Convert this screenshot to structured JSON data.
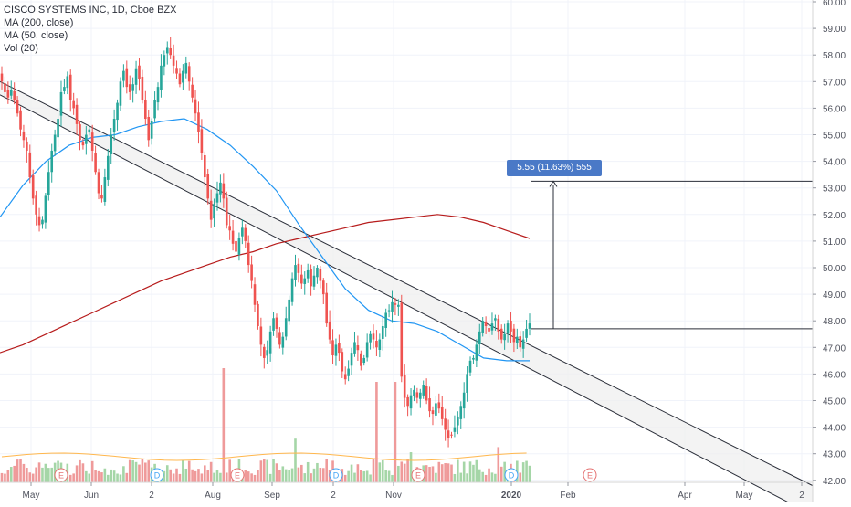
{
  "legend": {
    "symbol": "CISCO SYSTEMS INC, 1D, Cboe BZX",
    "ma200": "MA (200, close)",
    "ma50": "MA (50, close)",
    "vol": "Vol (20)"
  },
  "measure_label": "5.55 (11.63%) 555",
  "colors": {
    "up": "#26a69a",
    "down": "#ef5350",
    "vol_up": "#a5d6a7",
    "vol_down": "#ef9a9a",
    "ma200": "#b71c1c",
    "ma50": "#2196f3",
    "vol_ma": "#ffb74d",
    "channel_fill": "#eeeeee",
    "measure": "#4a79c7"
  },
  "chart_data": {
    "type": "candlestick",
    "title": "CISCO SYSTEMS INC, 1D, Cboe BZX",
    "x_ticks": [
      "May",
      "Jun",
      "2",
      "Aug",
      "Sep",
      "2",
      "Nov",
      "2020",
      "Feb",
      "Apr",
      "May",
      "2"
    ],
    "y_ticks": [
      "60.00",
      "59.00",
      "58.00",
      "57.00",
      "56.00",
      "55.00",
      "54.00",
      "53.00",
      "52.00",
      "51.00",
      "50.00",
      "49.00",
      "48.00",
      "47.00",
      "46.00",
      "45.00",
      "44.00",
      "43.00",
      "42.00"
    ],
    "ylim": [
      42,
      60
    ],
    "candle_closes": [
      57.0,
      56.6,
      56.4,
      56.7,
      56.3,
      55.8,
      55.2,
      54.8,
      54.4,
      53.4,
      52.6,
      52.0,
      51.6,
      51.8,
      52.7,
      53.6,
      54.4,
      55.0,
      55.6,
      56.6,
      56.8,
      57.2,
      56.3,
      56.0,
      55.4,
      54.8,
      54.6,
      55.0,
      55.2,
      54.4,
      53.6,
      52.8,
      52.6,
      53.4,
      54.2,
      55.0,
      55.6,
      56.2,
      57.0,
      57.4,
      56.8,
      56.6,
      56.9,
      57.5,
      57.1,
      56.3,
      55.6,
      54.8,
      55.5,
      56.3,
      56.8,
      57.6,
      58.0,
      58.3,
      58.0,
      57.6,
      57.3,
      56.9,
      57.4,
      57.7,
      57.0,
      56.4,
      55.8,
      55.1,
      54.3,
      53.4,
      52.6,
      51.8,
      52.4,
      52.8,
      53.2,
      52.6,
      51.6,
      51.4,
      50.9,
      50.6,
      51.1,
      51.5,
      51.0,
      50.1,
      49.5,
      48.6,
      47.8,
      47.1,
      46.6,
      46.9,
      47.6,
      48.1,
      47.7,
      47.1,
      47.4,
      48.1,
      48.8,
      49.6,
      50.1,
      49.8,
      49.4,
      49.6,
      49.9,
      49.3,
      49.7,
      50.0,
      49.5,
      49.0,
      47.9,
      47.3,
      46.7,
      47.1,
      46.8,
      46.1,
      45.8,
      46.2,
      46.8,
      47.2,
      46.9,
      46.3,
      46.6,
      47.2,
      47.5,
      47.3,
      47.0,
      47.3,
      47.8,
      48.3,
      48.4,
      48.7,
      48.6,
      48.6,
      45.9,
      45.1,
      44.8,
      45.2,
      45.4,
      45.1,
      45.3,
      45.6,
      45.0,
      44.6,
      44.5,
      44.9,
      44.7,
      44.3,
      43.9,
      43.6,
      43.7,
      44.0,
      44.4,
      44.8,
      45.3,
      46.0,
      46.5,
      46.6,
      47.1,
      47.6,
      48.0,
      47.8,
      47.6,
      47.9,
      48.1,
      47.6,
      47.3,
      47.5,
      47.9,
      47.6,
      47.2,
      47.4,
      47.0,
      47.3,
      47.7,
      47.9
    ],
    "annotations": {
      "channel_upper": {
        "start": [
          0,
          57.0
        ],
        "end": [
          1260,
          41.8
        ]
      },
      "channel_lower": {
        "start": [
          0,
          56.5
        ],
        "end": [
          1260,
          40.7
        ]
      },
      "measure_from": 47.7,
      "measure_to": 53.25,
      "measure_text": "5.55 (11.63%) 555",
      "event_markers": [
        "E",
        "D",
        "E",
        "D",
        "E",
        "D",
        "E"
      ]
    },
    "series": [
      {
        "name": "MA (200, close)"
      },
      {
        "name": "MA (50, close)"
      },
      {
        "name": "Vol (20)"
      }
    ]
  }
}
